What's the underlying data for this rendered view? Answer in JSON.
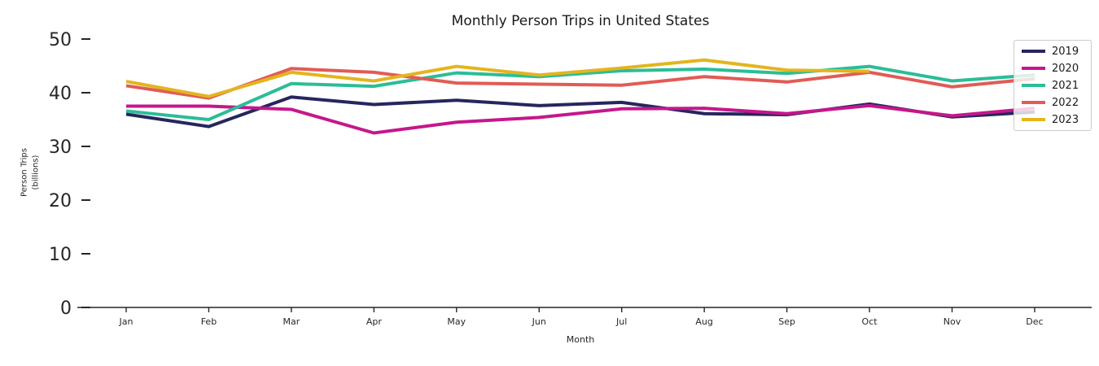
{
  "chart_data": {
    "type": "line",
    "title": "Monthly Person Trips in United States",
    "xlabel": "Month",
    "ylabel": "Person Trips",
    "ylabel_sub": "(billions)",
    "categories": [
      "Jan",
      "Feb",
      "Mar",
      "Apr",
      "May",
      "Jun",
      "Jul",
      "Aug",
      "Sep",
      "Oct",
      "Nov",
      "Dec"
    ],
    "yticks": [
      0,
      10,
      20,
      30,
      40,
      50
    ],
    "ylim": [
      0,
      52
    ],
    "grid": false,
    "legend_position": "upper right",
    "axis_color": "#262626",
    "series": [
      {
        "name": "2019",
        "color": "#26265e",
        "values": [
          36.0,
          33.7,
          39.2,
          37.8,
          38.6,
          37.6,
          38.2,
          36.1,
          35.9,
          37.9,
          35.5,
          36.4
        ]
      },
      {
        "name": "2020",
        "color": "#c5178c",
        "values": [
          37.5,
          37.5,
          36.9,
          32.5,
          34.5,
          35.4,
          37.0,
          37.1,
          36.1,
          37.6,
          35.7,
          37.1
        ]
      },
      {
        "name": "2021",
        "color": "#2bbd97",
        "values": [
          36.6,
          35.0,
          41.7,
          41.2,
          43.7,
          43.0,
          44.1,
          44.4,
          43.6,
          44.9,
          42.2,
          43.3
        ]
      },
      {
        "name": "2022",
        "color": "#e05c56",
        "values": [
          41.3,
          39.0,
          44.5,
          43.8,
          41.8,
          41.6,
          41.4,
          43.0,
          42.0,
          43.8,
          41.1,
          42.6
        ]
      },
      {
        "name": "2023",
        "color": "#e3b51e",
        "values": [
          42.1,
          39.3,
          43.8,
          42.2,
          44.9,
          43.3,
          44.6,
          46.1,
          44.2,
          44.0,
          null,
          null
        ]
      }
    ]
  }
}
